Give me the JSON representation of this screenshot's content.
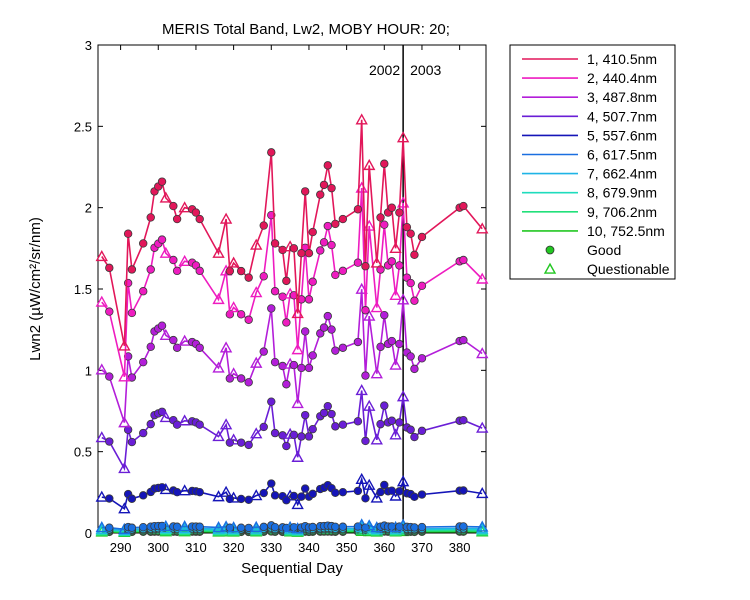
{
  "chart_data": {
    "type": "line",
    "title": "MERIS Total Band, Lw2, MOBY HOUR: 20;",
    "xlabel": "Sequential Day",
    "ylabel": "Lwn2 (µW/cm²/sr/nm)",
    "xlim": [
      284,
      387
    ],
    "ylim": [
      0,
      3
    ],
    "xticks": [
      290,
      300,
      310,
      320,
      330,
      340,
      350,
      360,
      370,
      380
    ],
    "yticks": [
      0,
      0.5,
      1,
      1.5,
      2,
      2.5,
      3
    ],
    "xtick_labels": [
      "290",
      "300",
      "310",
      "320",
      "330",
      "340",
      "350",
      "360",
      "370",
      "380"
    ],
    "ytick_labels": [
      "0",
      "0.5",
      "1",
      "1.5",
      "2",
      "2.5",
      "3"
    ],
    "grid": false,
    "legend_position": "outside-right",
    "year_divider": {
      "x": 365,
      "labels": [
        "2002",
        "2003"
      ]
    },
    "x": [
      285,
      287,
      291,
      292,
      293,
      296,
      298,
      299,
      300,
      301,
      302,
      304,
      305,
      307,
      309,
      310,
      311,
      316,
      318,
      319,
      320,
      322,
      324,
      326,
      328,
      330,
      331,
      333,
      334,
      335,
      336,
      337,
      338,
      339,
      340,
      341,
      343,
      344,
      345,
      346,
      347,
      349,
      353,
      354,
      355,
      356,
      358,
      359,
      360,
      361,
      362,
      363,
      364,
      365,
      366,
      367,
      368,
      370,
      380,
      381,
      386
    ],
    "series": [
      {
        "name": "1, 410.5nm",
        "color": "#e2175a",
        "scale": 1.0,
        "values": [
          1.7,
          1.63,
          1.15,
          1.84,
          1.62,
          1.78,
          1.94,
          2.1,
          2.13,
          2.16,
          2.06,
          2.01,
          1.93,
          2.0,
          1.99,
          1.97,
          1.93,
          1.72,
          1.93,
          1.61,
          1.66,
          1.61,
          1.57,
          1.77,
          1.89,
          2.34,
          1.78,
          1.74,
          1.55,
          1.76,
          1.75,
          1.35,
          1.72,
          2.1,
          1.72,
          1.85,
          2.08,
          2.14,
          2.26,
          2.12,
          1.9,
          1.93,
          1.99,
          2.54,
          1.64,
          2.26,
          1.66,
          1.94,
          2.27,
          1.97,
          2.0,
          1.75,
          1.97,
          2.43,
          1.88,
          1.84,
          1.71,
          1.82,
          2.0,
          2.01,
          1.87
        ]
      },
      {
        "name": "2, 440.4nm",
        "color": "#ee1cc0",
        "scale": 0.835
      },
      {
        "name": "3, 487.8nm",
        "color": "#b31ed9",
        "scale": 0.59
      },
      {
        "name": "4, 507.7nm",
        "color": "#6a1ed6",
        "scale": 0.345
      },
      {
        "name": "5, 557.6nm",
        "color": "#1515b8",
        "scale": 0.13
      },
      {
        "name": "6, 617.5nm",
        "color": "#1a6fe0",
        "scale": 0.02
      },
      {
        "name": "7, 662.4nm",
        "color": "#1fb4e6",
        "scale": 0.014
      },
      {
        "name": "8, 679.9nm",
        "color": "#1fdcbd",
        "scale": 0.011
      },
      {
        "name": "9, 706.2nm",
        "color": "#22e07a",
        "scale": 0.007
      },
      {
        "name": "10, 752.5nm",
        "color": "#22c722",
        "scale": 0.004
      }
    ],
    "questionable_x": [
      285,
      291,
      302,
      307,
      316,
      318,
      320,
      326,
      335,
      337,
      354,
      356,
      358,
      363,
      365,
      386
    ],
    "legend": {
      "good_label": "Good",
      "questionable_label": "Questionable"
    }
  }
}
